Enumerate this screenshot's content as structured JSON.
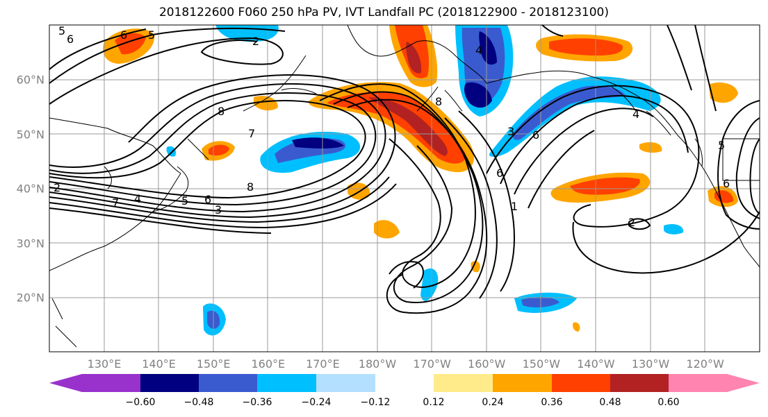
{
  "title": "2018122600 F060 250 hPa PV, IVT Landfall PC (2018122900 - 2018123100)",
  "lat_ticks": [
    {
      "label": "60°N",
      "value": 60
    },
    {
      "label": "50°N",
      "value": 50
    },
    {
      "label": "40°N",
      "value": 40
    },
    {
      "label": "30°N",
      "value": 30
    },
    {
      "label": "20°N",
      "value": 20
    }
  ],
  "lon_ticks": [
    {
      "label": "130°E",
      "value": 130
    },
    {
      "label": "140°E",
      "value": 140
    },
    {
      "label": "150°E",
      "value": 150
    },
    {
      "label": "160°E",
      "value": 160
    },
    {
      "label": "170°E",
      "value": 170
    },
    {
      "label": "180°W",
      "value": 180
    },
    {
      "label": "170°W",
      "value": 190
    },
    {
      "label": "160°W",
      "value": 200
    },
    {
      "label": "150°W",
      "value": 210
    },
    {
      "label": "140°W",
      "value": 220
    },
    {
      "label": "130°W",
      "value": 230
    },
    {
      "label": "120°W",
      "value": 240
    }
  ],
  "colorbar": {
    "labels": [
      "−0.60",
      "−0.48",
      "−0.36",
      "−0.24",
      "−0.12",
      "0.12",
      "0.24",
      "0.36",
      "0.48",
      "0.60"
    ],
    "colors": [
      "#9932CC",
      "#000080",
      "#3A5BD0",
      "#00BFFF",
      "#B3E0FF",
      "#FFFFFF",
      "#FFEB8A",
      "#FFA500",
      "#FF4000",
      "#B22222",
      "#FF85B0"
    ]
  },
  "contour_labels": [
    "5",
    "6",
    "6",
    "5",
    "2",
    "7",
    "8",
    "8",
    "4",
    "5",
    "6",
    "3",
    "7",
    "2",
    "4",
    "3",
    "8",
    "6",
    "1",
    "6",
    "4",
    "5",
    "6",
    "2"
  ],
  "colors": {
    "contour": "#000000",
    "grid": "#999999",
    "coast": "#000000"
  }
}
